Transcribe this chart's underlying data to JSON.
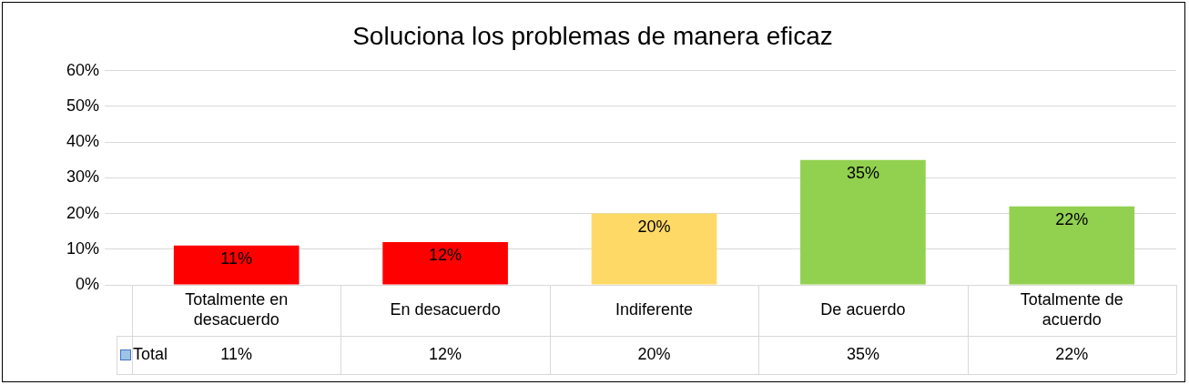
{
  "chart_data": {
    "type": "bar",
    "title": "Soluciona los problemas de manera eficaz",
    "categories": [
      "Totalmente en desacuerdo",
      "En desacuerdo",
      "Indiferente",
      "De acuerdo",
      "Totalmente de acuerdo"
    ],
    "series": [
      {
        "name": "Total",
        "color": "#9dc3e6",
        "colors": [
          "#ff0000",
          "#ff0000",
          "#ffd966",
          "#92d050",
          "#92d050"
        ],
        "values": [
          11,
          12,
          20,
          35,
          22
        ],
        "value_labels": [
          "11%",
          "12%",
          "20%",
          "35%",
          "22%"
        ]
      }
    ],
    "ylim": [
      0,
      60
    ],
    "yticks": [
      {
        "value": 0,
        "label": "0%"
      },
      {
        "value": 10,
        "label": "10%"
      },
      {
        "value": 20,
        "label": "20%"
      },
      {
        "value": 30,
        "label": "30%"
      },
      {
        "value": 40,
        "label": "40%"
      },
      {
        "value": 50,
        "label": "50%"
      },
      {
        "value": 60,
        "label": "60%"
      }
    ],
    "grid": "y",
    "legend": "bottom"
  }
}
